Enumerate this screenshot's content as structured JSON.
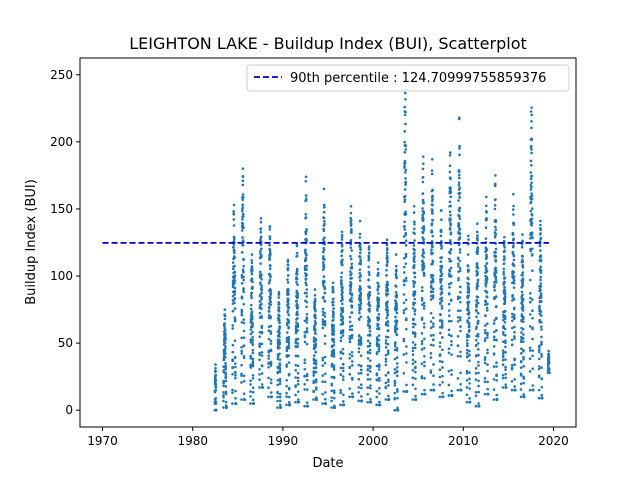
{
  "chart_data": {
    "type": "scatter",
    "title": "LEIGHTON LAKE - Buildup Index (BUI), Scatterplot",
    "xlabel": "Date",
    "ylabel": "Buildup Index (BUI)",
    "xlim": [
      1967.5,
      2022.5
    ],
    "ylim": [
      -12.5,
      262.5
    ],
    "x_ticks": [
      1970,
      1980,
      1990,
      2000,
      2010,
      2020
    ],
    "y_ticks": [
      0,
      50,
      100,
      150,
      200,
      250
    ],
    "grid": false,
    "legend_position": "top-right",
    "colors": {
      "points": "#1f77b4",
      "percentile": "#0000cc"
    },
    "series": [
      {
        "name": "",
        "seasons": [
          {
            "start": 1982.45,
            "end": 1982.6,
            "min": 0,
            "peak": 34
          },
          {
            "start": 1983.4,
            "end": 1983.75,
            "min": 2,
            "peak": 75
          },
          {
            "start": 1984.4,
            "end": 1984.8,
            "min": 5,
            "peak": 153
          },
          {
            "start": 1985.4,
            "end": 1985.75,
            "min": 8,
            "peak": 180
          },
          {
            "start": 1986.4,
            "end": 1986.75,
            "min": 5,
            "peak": 116
          },
          {
            "start": 1987.4,
            "end": 1987.75,
            "min": 17,
            "peak": 143
          },
          {
            "start": 1988.4,
            "end": 1988.75,
            "min": 10,
            "peak": 137
          },
          {
            "start": 1989.4,
            "end": 1989.75,
            "min": 2,
            "peak": 88
          },
          {
            "start": 1990.4,
            "end": 1990.75,
            "min": 4,
            "peak": 112
          },
          {
            "start": 1991.4,
            "end": 1991.75,
            "min": 6,
            "peak": 124
          },
          {
            "start": 1992.4,
            "end": 1992.75,
            "min": 3,
            "peak": 174
          },
          {
            "start": 1993.4,
            "end": 1993.75,
            "min": 8,
            "peak": 90
          },
          {
            "start": 1994.4,
            "end": 1994.75,
            "min": 5,
            "peak": 165
          },
          {
            "start": 1995.4,
            "end": 1995.75,
            "min": 2,
            "peak": 95
          },
          {
            "start": 1996.4,
            "end": 1996.75,
            "min": 4,
            "peak": 133
          },
          {
            "start": 1997.4,
            "end": 1997.75,
            "min": 10,
            "peak": 152
          },
          {
            "start": 1998.4,
            "end": 1998.75,
            "min": 7,
            "peak": 141
          },
          {
            "start": 1999.4,
            "end": 1999.75,
            "min": 6,
            "peak": 122
          },
          {
            "start": 2000.4,
            "end": 2000.75,
            "min": 4,
            "peak": 110
          },
          {
            "start": 2001.4,
            "end": 2001.75,
            "min": 8,
            "peak": 127
          },
          {
            "start": 2002.4,
            "end": 2002.75,
            "min": 0,
            "peak": 116
          },
          {
            "start": 2003.4,
            "end": 2003.75,
            "min": 14,
            "peak": 252
          },
          {
            "start": 2004.4,
            "end": 2004.75,
            "min": 8,
            "peak": 152
          },
          {
            "start": 2005.4,
            "end": 2005.75,
            "min": 12,
            "peak": 189
          },
          {
            "start": 2006.4,
            "end": 2006.75,
            "min": 15,
            "peak": 187
          },
          {
            "start": 2007.4,
            "end": 2007.75,
            "min": 10,
            "peak": 149
          },
          {
            "start": 2008.4,
            "end": 2008.75,
            "min": 11,
            "peak": 192
          },
          {
            "start": 2009.4,
            "end": 2009.75,
            "min": 15,
            "peak": 218
          },
          {
            "start": 2010.4,
            "end": 2010.75,
            "min": 6,
            "peak": 130
          },
          {
            "start": 2011.4,
            "end": 2011.75,
            "min": 3,
            "peak": 139
          },
          {
            "start": 2012.4,
            "end": 2012.75,
            "min": 12,
            "peak": 159
          },
          {
            "start": 2013.4,
            "end": 2013.75,
            "min": 8,
            "peak": 175
          },
          {
            "start": 2014.4,
            "end": 2014.75,
            "min": 17,
            "peak": 129
          },
          {
            "start": 2015.4,
            "end": 2015.75,
            "min": 15,
            "peak": 161
          },
          {
            "start": 2016.4,
            "end": 2016.75,
            "min": 10,
            "peak": 131
          },
          {
            "start": 2017.4,
            "end": 2017.75,
            "min": 15,
            "peak": 243
          },
          {
            "start": 2018.4,
            "end": 2018.75,
            "min": 9,
            "peak": 141
          },
          {
            "start": 2019.4,
            "end": 2019.55,
            "min": 28,
            "peak": 44
          }
        ]
      },
      {
        "name": "90th percentile : 124.70999755859376",
        "style": "dashed",
        "x": [
          1970,
          2019.5
        ],
        "values": [
          124.71,
          124.71
        ]
      }
    ]
  }
}
